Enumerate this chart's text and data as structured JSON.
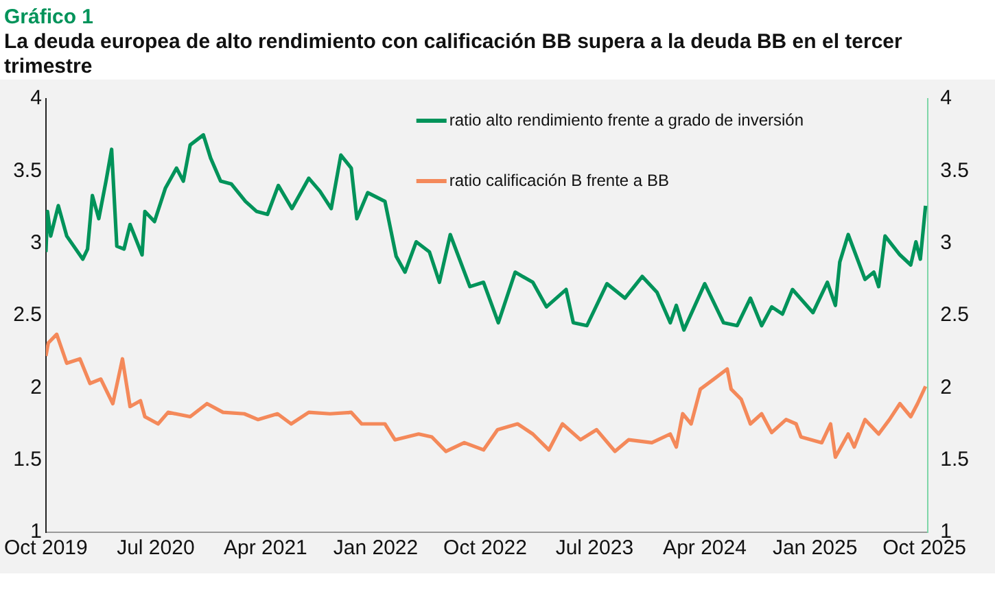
{
  "chart_data": {
    "type": "line",
    "title": "Gráfico 1",
    "subtitle": "La deuda europea de alto rendimiento con calificación BB supera a la deuda BB en el tercer trimestre",
    "xlim": [
      "2019-10-01",
      "2025-10-10"
    ],
    "xticks": [
      {
        "value": "2019-10-01",
        "label": "Oct 2019"
      },
      {
        "value": "2020-07-01",
        "label": "Jul 2020"
      },
      {
        "value": "2021-04-01",
        "label": "Apr 2021"
      },
      {
        "value": "2022-01-01",
        "label": "Jan 2022"
      },
      {
        "value": "2022-10-01",
        "label": "Oct 2022"
      },
      {
        "value": "2023-07-01",
        "label": "Jul 2023"
      },
      {
        "value": "2024-04-01",
        "label": "Apr 2024"
      },
      {
        "value": "2025-01-01",
        "label": "Jan 2025"
      },
      {
        "value": "2025-10-01",
        "label": "Oct 2025"
      }
    ],
    "ylim": [
      1,
      4
    ],
    "yticks": [
      1,
      1.5,
      2,
      2.5,
      3,
      3.5,
      4
    ],
    "y2lim": [
      1,
      4
    ],
    "y2ticks": [
      1,
      1.5,
      2,
      2.5,
      3,
      3.5,
      4
    ],
    "grid": false,
    "legend": "top",
    "marker": "none",
    "line_style": "solid",
    "series": [
      {
        "name": "ratio alto rendimiento frente a grado de inversión",
        "color": "#00935a",
        "x": [
          "2019-10-01",
          "2019-10-05",
          "2019-10-13",
          "2019-11-01",
          "2019-11-22",
          "2020-01-01",
          "2020-01-13",
          "2020-01-25",
          "2020-02-10",
          "2020-02-28",
          "2020-03-13",
          "2020-03-26",
          "2020-04-13",
          "2020-04-28",
          "2020-05-28",
          "2020-06-04",
          "2020-06-28",
          "2020-07-25",
          "2020-08-22",
          "2020-09-08",
          "2020-09-25",
          "2020-10-28",
          "2020-11-15",
          "2020-12-10",
          "2021-01-06",
          "2021-02-10",
          "2021-03-10",
          "2021-04-06",
          "2021-05-03",
          "2021-06-06",
          "2021-07-18",
          "2021-08-15",
          "2021-09-12",
          "2021-10-06",
          "2021-11-01",
          "2021-11-15",
          "2021-12-12",
          "2022-01-24",
          "2022-02-21",
          "2022-03-15",
          "2022-04-12",
          "2022-05-15",
          "2022-06-09",
          "2022-07-06",
          "2022-08-24",
          "2022-09-27",
          "2022-11-03",
          "2022-12-15",
          "2023-01-28",
          "2023-03-03",
          "2023-04-21",
          "2023-05-09",
          "2023-06-12",
          "2023-08-01",
          "2023-09-15",
          "2023-10-28",
          "2023-12-04",
          "2024-01-06",
          "2024-01-21",
          "2024-02-09",
          "2024-04-01",
          "2024-05-18",
          "2024-06-21",
          "2024-07-24",
          "2024-08-21",
          "2024-09-15",
          "2024-10-12",
          "2024-11-06",
          "2024-12-27",
          "2025-02-01",
          "2025-02-21",
          "2025-03-04",
          "2025-03-25",
          "2025-05-06",
          "2025-05-28",
          "2025-06-09",
          "2025-06-25",
          "2025-08-01",
          "2025-08-28",
          "2025-09-10",
          "2025-09-21",
          "2025-10-04"
        ],
        "values": [
          2.94,
          3.22,
          3.05,
          3.26,
          3.05,
          2.89,
          2.96,
          3.33,
          3.17,
          3.43,
          3.65,
          2.98,
          2.96,
          3.13,
          2.92,
          3.22,
          3.15,
          3.38,
          3.52,
          3.43,
          3.68,
          3.75,
          3.59,
          3.43,
          3.41,
          3.29,
          3.22,
          3.2,
          3.4,
          3.24,
          3.45,
          3.36,
          3.24,
          3.61,
          3.52,
          3.17,
          3.35,
          3.29,
          2.91,
          2.8,
          3.01,
          2.94,
          2.73,
          3.06,
          2.7,
          2.73,
          2.45,
          2.8,
          2.73,
          2.56,
          2.68,
          2.45,
          2.43,
          2.72,
          2.62,
          2.77,
          2.66,
          2.45,
          2.57,
          2.4,
          2.72,
          2.45,
          2.43,
          2.62,
          2.43,
          2.56,
          2.51,
          2.68,
          2.52,
          2.73,
          2.57,
          2.87,
          3.06,
          2.75,
          2.8,
          2.7,
          3.05,
          2.92,
          2.85,
          3.01,
          2.89,
          3.26
        ]
      },
      {
        "name": "ratio calificación B frente a BB",
        "color": "#f4895a",
        "x": [
          "2019-10-01",
          "2019-10-07",
          "2019-10-28",
          "2019-11-22",
          "2019-12-25",
          "2020-01-19",
          "2020-02-15",
          "2020-03-16",
          "2020-04-09",
          "2020-04-28",
          "2020-05-24",
          "2020-06-04",
          "2020-07-07",
          "2020-08-01",
          "2020-09-25",
          "2020-11-06",
          "2020-12-16",
          "2021-02-07",
          "2021-03-13",
          "2021-05-01",
          "2021-06-04",
          "2021-07-18",
          "2021-09-09",
          "2021-11-01",
          "2021-11-27",
          "2022-01-24",
          "2022-02-18",
          "2022-04-18",
          "2022-05-21",
          "2022-06-25",
          "2022-08-10",
          "2022-09-27",
          "2022-11-01",
          "2022-12-21",
          "2023-01-28",
          "2023-03-09",
          "2023-04-12",
          "2023-05-27",
          "2023-07-06",
          "2023-08-21",
          "2023-09-24",
          "2023-11-21",
          "2024-01-06",
          "2024-01-21",
          "2024-02-06",
          "2024-02-27",
          "2024-03-21",
          "2024-04-24",
          "2024-05-27",
          "2024-06-06",
          "2024-07-01",
          "2024-07-24",
          "2024-08-21",
          "2024-09-15",
          "2024-10-21",
          "2024-11-15",
          "2024-11-27",
          "2025-01-18",
          "2025-02-09",
          "2025-02-21",
          "2025-03-25",
          "2025-04-09",
          "2025-05-06",
          "2025-06-09",
          "2025-07-06",
          "2025-08-01",
          "2025-08-28",
          "2025-09-14",
          "2025-10-04"
        ],
        "values": [
          2.22,
          2.31,
          2.37,
          2.17,
          2.2,
          2.03,
          2.06,
          1.89,
          2.2,
          1.87,
          1.91,
          1.8,
          1.75,
          1.83,
          1.8,
          1.89,
          1.83,
          1.82,
          1.78,
          1.82,
          1.75,
          1.83,
          1.82,
          1.83,
          1.75,
          1.75,
          1.64,
          1.68,
          1.66,
          1.56,
          1.62,
          1.57,
          1.71,
          1.75,
          1.68,
          1.57,
          1.75,
          1.64,
          1.71,
          1.56,
          1.64,
          1.62,
          1.68,
          1.59,
          1.82,
          1.75,
          1.99,
          2.06,
          2.13,
          1.99,
          1.92,
          1.75,
          1.82,
          1.69,
          1.78,
          1.75,
          1.66,
          1.62,
          1.75,
          1.52,
          1.68,
          1.59,
          1.78,
          1.68,
          1.78,
          1.89,
          1.8,
          1.89,
          2.01
        ]
      }
    ]
  }
}
